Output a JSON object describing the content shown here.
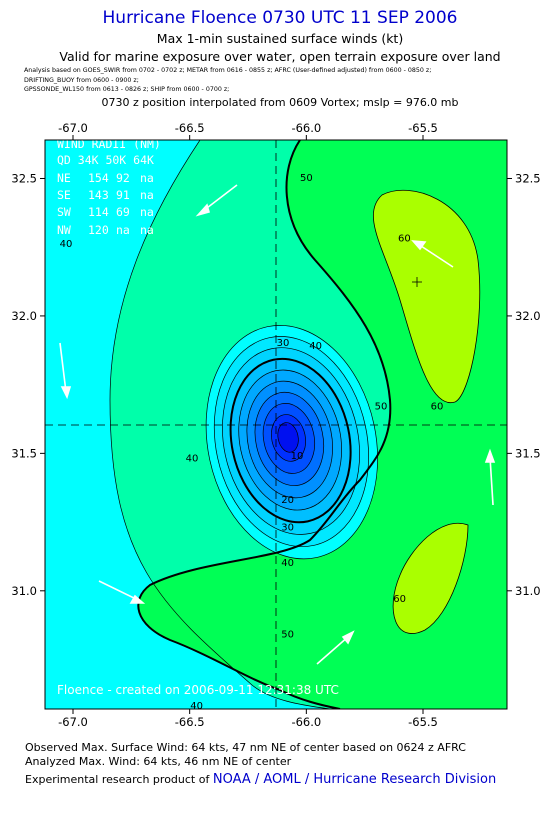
{
  "header": {
    "title": "Hurricane Floence 0730 UTC 11 SEP 2006",
    "subtitle": "Max 1-min sustained surface winds (kt)",
    "validity": "Valid for marine exposure over water, open terrain exposure over land",
    "analysis_lines": [
      "Analysis based on  GOES_SWIR from 0702 - 0702 z;  METAR from 0616 - 0855 z;  AFRC (User-defined adjusted) from 0600 - 0850 z;",
      "DRIFTING_BUOY from 0600 - 0900 z;",
      "GPSSONDE_WL150 from 0613 - 0826 z;  SHIP from 0600 - 0700 z;"
    ],
    "position_note": "0730 z position interpolated from 0609 Vortex; mslp = 976.0 mb"
  },
  "chart_data": {
    "type": "heatmap",
    "subtype": "filled-contour wind analysis map",
    "x_ticks": [
      "-67.0",
      "-66.5",
      "-66.0",
      "-65.5"
    ],
    "y_ticks": [
      "32.5",
      "32.0",
      "31.5",
      "31.0"
    ],
    "xlim": [
      -67.12,
      -65.14
    ],
    "ylim": [
      30.57,
      32.64
    ],
    "center": {
      "lon": -66.08,
      "lat": 31.56
    },
    "max_wind_marker": {
      "lon": -65.5,
      "lat": 32.07
    },
    "contour_levels": [
      10,
      15,
      20,
      25,
      30,
      35,
      40,
      45,
      50,
      55,
      60,
      65
    ],
    "contour_labels": [
      {
        "text": "50",
        "lon": -66.0,
        "lat": 32.49
      },
      {
        "text": "60",
        "lon": -65.58,
        "lat": 32.27
      },
      {
        "text": "40",
        "lon": -65.96,
        "lat": 31.88
      },
      {
        "text": "30",
        "lon": -66.1,
        "lat": 31.89
      },
      {
        "text": "50",
        "lon": -65.68,
        "lat": 31.66
      },
      {
        "text": "60",
        "lon": -65.44,
        "lat": 31.66
      },
      {
        "text": "40",
        "lon": -66.49,
        "lat": 31.47
      },
      {
        "text": "10",
        "lon": -66.04,
        "lat": 31.48
      },
      {
        "text": "20",
        "lon": -66.08,
        "lat": 31.32
      },
      {
        "text": "30",
        "lon": -66.08,
        "lat": 31.22
      },
      {
        "text": "40",
        "lon": -66.08,
        "lat": 31.09
      },
      {
        "text": "60",
        "lon": -65.6,
        "lat": 30.96
      },
      {
        "text": "50",
        "lon": -66.08,
        "lat": 30.83
      },
      {
        "text": "40",
        "lon": -66.47,
        "lat": 30.57
      },
      {
        "text": "40",
        "lon": -67.03,
        "lat": 32.25
      }
    ],
    "wind_radii": {
      "header": "WIND RADII (NM)",
      "columns": [
        "QD",
        "34K",
        "50K",
        "64K"
      ],
      "rows": [
        [
          "NE",
          "154",
          "92",
          "na"
        ],
        [
          "SE",
          "143",
          "91",
          "na"
        ],
        [
          "SW",
          "114",
          "69",
          "na"
        ],
        [
          "NW",
          "120",
          "na",
          "na"
        ]
      ]
    },
    "credit": "Floence - created on 2006-09-11 12:31:38 UTC",
    "colors": {
      "lt40": "#00ffff",
      "c40": "#00ffaa",
      "c50": "#00ff55",
      "c60": "#aaff00",
      "eye_levels": [
        "#00e8ff",
        "#00d4ff",
        "#00bfff",
        "#00a8ff",
        "#0090ff",
        "#0070ff",
        "#0050ff",
        "#0030ff",
        "#0010f0"
      ]
    }
  },
  "footer": {
    "observed": "Observed Max. Surface Wind: 64 kts, 47 nm NE of center based on 0624 z AFRC",
    "analyzed": "Analyzed Max. Wind: 64 kts, 46 nm NE of center",
    "credit_prefix": "Experimental research product of ",
    "credit_link": "NOAA / AOML / Hurricane Research Division"
  }
}
